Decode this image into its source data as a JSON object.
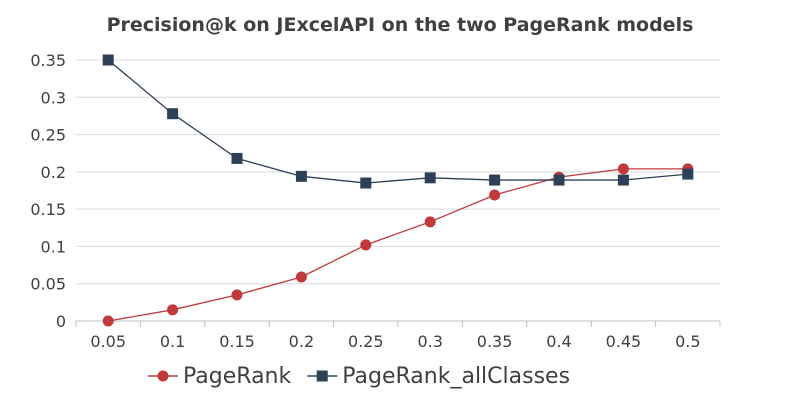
{
  "chart_data": {
    "type": "line",
    "title": "Precision@k on JExcelAPI on the two PageRank models",
    "xlabel": "",
    "ylabel": "",
    "categories": [
      "0.05",
      "0.1",
      "0.15",
      "0.2",
      "0.25",
      "0.3",
      "0.35",
      "0.4",
      "0.45",
      "0.5"
    ],
    "y_ticks": [
      "0",
      "0.05",
      "0.1",
      "0.15",
      "0.2",
      "0.25",
      "0.3",
      "0.35"
    ],
    "ylim": [
      0,
      0.35
    ],
    "grid": true,
    "legend_position": "bottom",
    "series": [
      {
        "name": "PageRank",
        "color": "#c0393b",
        "marker": "circle",
        "values": [
          0.0,
          0.015,
          0.035,
          0.059,
          0.102,
          0.133,
          0.169,
          0.193,
          0.204,
          0.204
        ]
      },
      {
        "name": "PageRank_allClasses",
        "color": "#2e4057",
        "marker": "square",
        "values": [
          0.35,
          0.278,
          0.218,
          0.194,
          0.185,
          0.192,
          0.189,
          0.189,
          0.189,
          0.197
        ]
      }
    ]
  }
}
